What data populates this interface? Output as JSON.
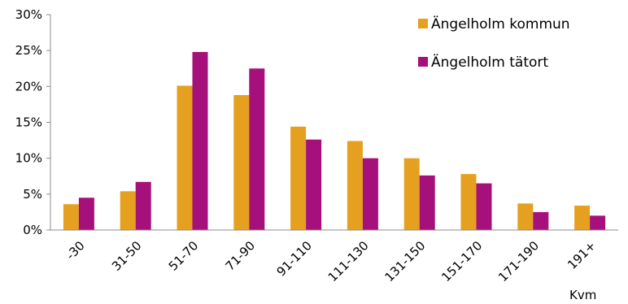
{
  "chart_data": {
    "type": "bar",
    "categories": [
      "-30",
      "31-50",
      "51-70",
      "71-90",
      "91-110",
      "111-130",
      "131-150",
      "151-170",
      "171-190",
      "191+"
    ],
    "series": [
      {
        "name": "Ängelholm kommun",
        "color": "#E5A020",
        "values": [
          3.6,
          5.4,
          20.1,
          18.8,
          14.4,
          12.4,
          10.0,
          7.8,
          3.7,
          3.4
        ]
      },
      {
        "name": "Ängelholm tätort",
        "color": "#A6107A",
        "values": [
          4.5,
          6.7,
          24.8,
          22.5,
          12.6,
          10.0,
          7.6,
          6.5,
          2.5,
          2.0
        ]
      }
    ],
    "yticks": [
      "0%",
      "5%",
      "10%",
      "15%",
      "20%",
      "25%",
      "30%"
    ],
    "ylim": [
      0,
      30
    ],
    "xlabel": "Kvm",
    "ylabel": "",
    "legend_position": "top-right",
    "grid": false
  }
}
